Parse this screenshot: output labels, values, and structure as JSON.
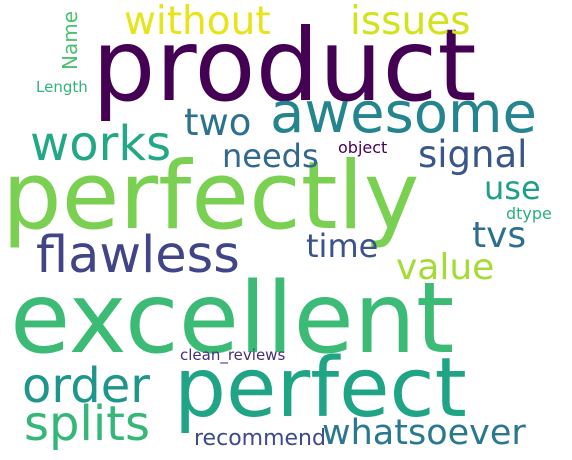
{
  "words": [
    {
      "key": "excellent",
      "text": "excellent",
      "color": "#3bbb75"
    },
    {
      "key": "perfectly",
      "text": "perfectly",
      "color": "#7ad151"
    },
    {
      "key": "product",
      "text": "product",
      "color": "#440154"
    },
    {
      "key": "perfect",
      "text": "perfect",
      "color": "#20a486"
    },
    {
      "key": "awesome",
      "text": "awesome",
      "color": "#25858e"
    },
    {
      "key": "flawless",
      "text": "flawless",
      "color": "#414487"
    },
    {
      "key": "works",
      "text": "works",
      "color": "#22a884"
    },
    {
      "key": "without",
      "text": "without",
      "color": "#e8e419"
    },
    {
      "key": "issues",
      "text": "issues",
      "color": "#d2e21b"
    },
    {
      "key": "order",
      "text": "order",
      "color": "#1f968b"
    },
    {
      "key": "splits",
      "text": "splits",
      "color": "#35b779"
    },
    {
      "key": "whatsoever",
      "text": "whatsoever",
      "color": "#2a788e"
    },
    {
      "key": "signal",
      "text": "signal",
      "color": "#39568c"
    },
    {
      "key": "value",
      "text": "value",
      "color": "#a5db36"
    },
    {
      "key": "time",
      "text": "time",
      "color": "#3b528b"
    },
    {
      "key": "needs",
      "text": "needs",
      "color": "#31688e"
    },
    {
      "key": "two",
      "text": "two",
      "color": "#2c728e"
    },
    {
      "key": "tvs",
      "text": "tvs",
      "color": "#2d708e"
    },
    {
      "key": "use",
      "text": "use",
      "color": "#1f9e89"
    },
    {
      "key": "recommend",
      "text": "recommend",
      "color": "#3e4a89"
    },
    {
      "key": "clean_reviews",
      "text": "clean_reviews",
      "color": "#472d7b"
    },
    {
      "key": "object",
      "text": "object",
      "color": "#440154"
    },
    {
      "key": "name",
      "text": "Name",
      "color": "#4ac16d"
    },
    {
      "key": "length",
      "text": "Length",
      "color": "#2fb47c"
    },
    {
      "key": "dtype",
      "text": "dtype",
      "color": "#29af7f"
    }
  ]
}
